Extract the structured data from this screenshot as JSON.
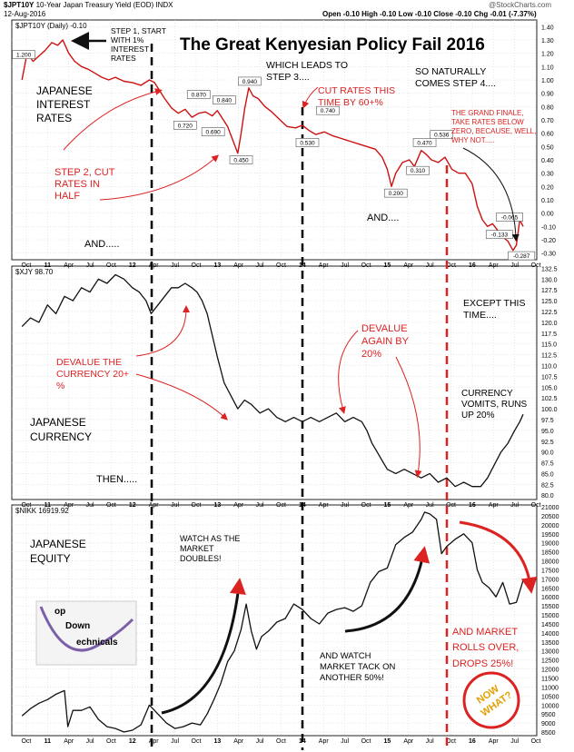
{
  "header": {
    "symbol": "$JPT10Y",
    "description": "10-Year Japan Treasury Yield (EOD)  INDX",
    "date": "12-Aug-2016",
    "quote": "Open -0.10  High -0.10  Low -0.10  Close -0.10  Chg -0.01 (-7.37%)",
    "watermark": "@StockCharts.com"
  },
  "colors": {
    "yield_line": "#cc1111",
    "annotation_red": "#dd2222",
    "line_black": "#111111"
  },
  "chart_data": [
    {
      "type": "line",
      "panel_label": "$JPT10Y (Daily) -0.10",
      "title": "The Great Kenyesian Policy Fail 2016",
      "ylim": [
        -0.35,
        1.45
      ],
      "yticks": [
        "1.40",
        "1.30",
        "1.20",
        "1.10",
        "1.00",
        "0.90",
        "0.80",
        "0.70",
        "0.60",
        "0.50",
        "0.40",
        "0.30",
        "0.20",
        "0.10",
        "0.00",
        "-0.10",
        "-0.20",
        "-0.30"
      ],
      "xticks": [
        "Oct",
        "11",
        "Apr",
        "Jul",
        "Oct",
        "12",
        "Apr",
        "Jul",
        "Oct",
        "13",
        "Apr",
        "Jul",
        "Oct",
        "14",
        "Apr",
        "Jul",
        "Oct",
        "15",
        "Apr",
        "Jul",
        "Oct",
        "16",
        "Apr",
        "Jul",
        "Oct"
      ],
      "x": [
        2010.7,
        2010.76,
        2010.83,
        2010.9,
        2010.97,
        2011.05,
        2011.12,
        2011.18,
        2011.25,
        2011.32,
        2011.4,
        2011.48,
        2011.56,
        2011.64,
        2011.72,
        2011.8,
        2011.9,
        2012.0,
        2012.1,
        2012.2,
        2012.26,
        2012.32,
        2012.38,
        2012.46,
        2012.54,
        2012.62,
        2012.7,
        2012.78,
        2012.86,
        2012.94,
        2013.0,
        2013.06,
        2013.12,
        2013.18,
        2013.24,
        2013.28,
        2013.32,
        2013.37,
        2013.42,
        2013.48,
        2013.56,
        2013.64,
        2013.72,
        2013.82,
        2013.92,
        2014.0,
        2014.08,
        2014.16,
        2014.26,
        2014.36,
        2014.46,
        2014.56,
        2014.66,
        2014.76,
        2014.86,
        2014.94,
        2015.0,
        2015.05,
        2015.1,
        2015.18,
        2015.26,
        2015.32,
        2015.4,
        2015.46,
        2015.52,
        2015.6,
        2015.68,
        2015.76,
        2015.84,
        2015.92,
        2016.0,
        2016.06,
        2016.12,
        2016.18,
        2016.24,
        2016.3,
        2016.36,
        2016.42,
        2016.48,
        2016.52,
        2016.56,
        2016.6
      ],
      "values": [
        1.0,
        1.2,
        1.14,
        1.18,
        1.22,
        1.28,
        1.26,
        1.3,
        1.2,
        1.14,
        1.1,
        1.08,
        1.05,
        1.02,
        1.0,
        1.02,
        0.99,
        0.98,
        0.96,
        1.0,
        0.98,
        0.92,
        0.86,
        0.79,
        0.75,
        0.78,
        0.72,
        0.75,
        0.76,
        0.73,
        0.77,
        0.71,
        0.65,
        0.55,
        0.45,
        0.6,
        0.78,
        0.94,
        0.88,
        0.86,
        0.8,
        0.76,
        0.71,
        0.65,
        0.64,
        0.66,
        0.62,
        0.59,
        0.61,
        0.58,
        0.56,
        0.54,
        0.52,
        0.5,
        0.48,
        0.42,
        0.33,
        0.2,
        0.3,
        0.38,
        0.4,
        0.35,
        0.47,
        0.44,
        0.4,
        0.38,
        0.42,
        0.33,
        0.3,
        0.3,
        0.22,
        0.05,
        -0.05,
        -0.1,
        -0.08,
        -0.13,
        -0.18,
        -0.21,
        -0.28,
        -0.24,
        -0.05,
        -0.1
      ],
      "data_labels": [
        {
          "x": 2010.72,
          "y": 1.18,
          "text": "1.200"
        },
        {
          "x": 2012.78,
          "y": 0.88,
          "text": "0.870"
        },
        {
          "x": 2012.62,
          "y": 0.65,
          "text": "0.720"
        },
        {
          "x": 2013.08,
          "y": 0.84,
          "text": "0.840"
        },
        {
          "x": 2012.95,
          "y": 0.6,
          "text": "0.690"
        },
        {
          "x": 2013.38,
          "y": 0.98,
          "text": "0.940"
        },
        {
          "x": 2013.28,
          "y": 0.39,
          "text": "0.450"
        },
        {
          "x": 2014.3,
          "y": 0.76,
          "text": "0.740"
        },
        {
          "x": 2014.06,
          "y": 0.52,
          "text": "0.530"
        },
        {
          "x": 2015.1,
          "y": 0.14,
          "text": "0.200"
        },
        {
          "x": 2015.36,
          "y": 0.31,
          "text": "0.310"
        },
        {
          "x": 2015.44,
          "y": 0.52,
          "text": "0.470"
        },
        {
          "x": 2015.64,
          "y": 0.58,
          "text": "0.536"
        },
        {
          "x": 2016.44,
          "y": -0.04,
          "text": "-0.065"
        },
        {
          "x": 2016.32,
          "y": -0.17,
          "text": "-0.133"
        },
        {
          "x": 2016.58,
          "y": -0.33,
          "text": "-0.287"
        }
      ],
      "annotations": [
        "Step 1, start with 1% interest rates",
        "Japanese Interest Rates",
        "Step 2, cut rates in half",
        "Which leads to Step 3....",
        "Cut rates this time by 60+%",
        "So naturally comes Step 4....",
        "The grand finale, take rates below zero, because, well, why not.....",
        "And.....",
        "And...."
      ]
    },
    {
      "type": "line",
      "panel_label": "$XJY 98.70",
      "ylim": [
        79,
        133
      ],
      "yticks": [
        "132.5",
        "130.0",
        "127.5",
        "125.0",
        "122.5",
        "120.0",
        "117.5",
        "115.0",
        "112.5",
        "110.0",
        "107.5",
        "105.0",
        "102.5",
        "100.0",
        "97.5",
        "95.0",
        "92.5",
        "90.0",
        "87.5",
        "85.0",
        "82.5",
        "80.0"
      ],
      "x": [
        2010.7,
        2010.8,
        2010.9,
        2011.0,
        2011.1,
        2011.2,
        2011.3,
        2011.4,
        2011.5,
        2011.6,
        2011.7,
        2011.8,
        2011.9,
        2012.0,
        2012.08,
        2012.16,
        2012.22,
        2012.3,
        2012.38,
        2012.46,
        2012.54,
        2012.62,
        2012.7,
        2012.76,
        2012.82,
        2012.88,
        2012.94,
        2013.0,
        2013.08,
        2013.16,
        2013.24,
        2013.32,
        2013.4,
        2013.5,
        2013.6,
        2013.7,
        2013.8,
        2013.9,
        2014.0,
        2014.1,
        2014.2,
        2014.3,
        2014.4,
        2014.5,
        2014.6,
        2014.7,
        2014.76,
        2014.82,
        2014.88,
        2014.94,
        2015.0,
        2015.1,
        2015.2,
        2015.3,
        2015.4,
        2015.5,
        2015.6,
        2015.7,
        2015.8,
        2015.9,
        2016.0,
        2016.1,
        2016.18,
        2016.26,
        2016.34,
        2016.42,
        2016.5,
        2016.56,
        2016.6
      ],
      "values": [
        119,
        121,
        120,
        124,
        122,
        126,
        125,
        128,
        127,
        130,
        129,
        131,
        130,
        128,
        127,
        125,
        122,
        124,
        126,
        128,
        128,
        129,
        128,
        127,
        125,
        122,
        117,
        112,
        106,
        103,
        100,
        102,
        101,
        99,
        100,
        98,
        97,
        98,
        97,
        98,
        97,
        98,
        99,
        97,
        98,
        97,
        95,
        92,
        90,
        88,
        86,
        85,
        86,
        85,
        84,
        85,
        83,
        84,
        82,
        83,
        82,
        82,
        84,
        87,
        90,
        92,
        95,
        97,
        98.7
      ],
      "annotations": [
        "Devalue the currency 20+%",
        "Japanese Currency",
        "Then.....",
        "Devalue again by 20%",
        "Except this time....",
        "Currency vomits, runs up 20%"
      ]
    },
    {
      "type": "line",
      "panel_label": "$NIKK 16919.92",
      "ylim": [
        8300,
        21100
      ],
      "yticks": [
        "21000",
        "20500",
        "20000",
        "19500",
        "19000",
        "18500",
        "18000",
        "17500",
        "17000",
        "16500",
        "16000",
        "15500",
        "15000",
        "14500",
        "14000",
        "13500",
        "13000",
        "12500",
        "12000",
        "11500",
        "11000",
        "10500",
        "10000",
        "9500",
        "9000",
        "8500"
      ],
      "x": [
        2010.7,
        2010.8,
        2010.9,
        2011.0,
        2011.1,
        2011.2,
        2011.24,
        2011.3,
        2011.4,
        2011.5,
        2011.6,
        2011.7,
        2011.8,
        2011.9,
        2012.0,
        2012.1,
        2012.2,
        2012.3,
        2012.4,
        2012.5,
        2012.6,
        2012.7,
        2012.8,
        2012.88,
        2012.96,
        2013.04,
        2013.12,
        2013.2,
        2013.28,
        2013.34,
        2013.4,
        2013.46,
        2013.52,
        2013.6,
        2013.7,
        2013.8,
        2013.9,
        2014.0,
        2014.1,
        2014.2,
        2014.3,
        2014.4,
        2014.5,
        2014.6,
        2014.7,
        2014.8,
        2014.9,
        2015.0,
        2015.1,
        2015.2,
        2015.3,
        2015.4,
        2015.44,
        2015.5,
        2015.58,
        2015.64,
        2015.7,
        2015.8,
        2015.9,
        2016.0,
        2016.06,
        2016.12,
        2016.2,
        2016.28,
        2016.36,
        2016.44,
        2016.52,
        2016.6
      ],
      "values": [
        9400,
        9800,
        10100,
        10300,
        10600,
        10800,
        8800,
        9700,
        9700,
        9900,
        9200,
        8800,
        8700,
        8500,
        8600,
        8900,
        10000,
        9500,
        9000,
        8700,
        8800,
        9000,
        8900,
        9500,
        10300,
        11200,
        12400,
        13000,
        14200,
        15600,
        14100,
        13100,
        13800,
        14100,
        14600,
        14800,
        15600,
        15300,
        14800,
        14500,
        15100,
        15300,
        15400,
        15200,
        15500,
        16800,
        17400,
        17600,
        18900,
        19300,
        19600,
        20300,
        20700,
        20600,
        20300,
        18400,
        18800,
        19200,
        19500,
        19000,
        17500,
        16800,
        16500,
        16000,
        16800,
        15600,
        15700,
        16920
      ],
      "annotations": [
        "Japanese Equity",
        "Watch as the market doubles!",
        "And watch market tack on another 50%!",
        "And market rolls over, drops 25%!",
        "Now what?"
      ]
    }
  ],
  "logo": {
    "line1": "op",
    "line2": "Down",
    "line3": "echnicals"
  }
}
